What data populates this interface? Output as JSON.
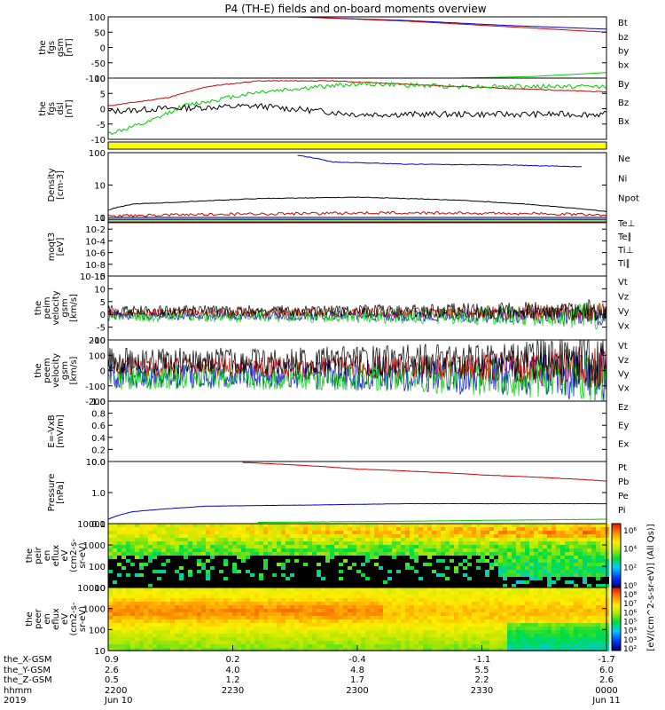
{
  "title": "P4 (TH-E) fields and on-board moments overview",
  "colors": {
    "black": "#000000",
    "red": "#cc0000",
    "green": "#00cc00",
    "blue": "#0000cc",
    "yellow": "#ffff00",
    "orange": "#ff9900"
  },
  "chart_data": [
    {
      "type": "line",
      "ylabel": "the fgs gsm [nT]",
      "yticks": [
        "100",
        "50",
        "0",
        "-50",
        "-100"
      ],
      "ylim": [
        -100,
        100
      ],
      "legend": [
        {
          "name": "Bt",
          "color": "black"
        },
        {
          "name": "bz",
          "color": "red"
        },
        {
          "name": "by",
          "color": "green"
        },
        {
          "name": "bx",
          "color": "blue"
        }
      ],
      "series": [
        {
          "name": "Bt",
          "x": [
            0.38,
            0.6,
            0.8,
            1.0
          ],
          "y": [
            100,
            88,
            72,
            60
          ]
        },
        {
          "name": "bz",
          "x": [
            0.38,
            0.6,
            0.8,
            1.0
          ],
          "y": [
            100,
            86,
            68,
            50
          ]
        },
        {
          "name": "by",
          "x": [
            0.7,
            0.85,
            1.0
          ],
          "y": [
            -100,
            -95,
            -82
          ]
        }
      ]
    },
    {
      "type": "line",
      "ylabel": "the fgs dsl [nT]",
      "yticks": [
        "10",
        "5",
        "0",
        "-5",
        "-10"
      ],
      "ylim": [
        -12,
        10
      ],
      "legend": [
        {
          "name": "By",
          "color": "green"
        },
        {
          "name": "Bz",
          "color": "red"
        },
        {
          "name": "Bx",
          "color": "black"
        }
      ],
      "series": [
        {
          "name": "Bz",
          "x": [
            0,
            0.12,
            0.2,
            0.3,
            0.45,
            0.7,
            1.0
          ],
          "y": [
            0,
            3,
            7,
            9,
            9,
            7,
            5
          ]
        },
        {
          "name": "By",
          "x": [
            0,
            0.08,
            0.15,
            0.3,
            0.5,
            0.7,
            1.0
          ],
          "y": [
            -10,
            -6,
            0,
            5,
            8,
            7,
            7
          ]
        },
        {
          "name": "Bx",
          "x": [
            0,
            0.1,
            0.3,
            0.5,
            0.7,
            1.0
          ],
          "y": [
            -2,
            -1,
            0,
            -3,
            -3,
            -3
          ]
        }
      ]
    },
    {
      "type": "bar",
      "ylabel": "",
      "legend": []
    },
    {
      "type": "line",
      "ylabel": "Density [cm-3]",
      "yticks": [
        "100",
        "10",
        "1"
      ],
      "ylim": [
        0.8,
        200
      ],
      "scale": "log",
      "legend": [
        {
          "name": "Ne",
          "color": "red"
        },
        {
          "name": "Ni",
          "color": "black"
        },
        {
          "name": "Npot",
          "color": "blue"
        }
      ],
      "series": [
        {
          "name": "Ni",
          "x": [
            0,
            0.05,
            0.15,
            0.3,
            0.5,
            0.7,
            0.9,
            1.0
          ],
          "y": [
            1.5,
            2.5,
            3,
            4,
            4.5,
            3.5,
            2,
            1.3
          ]
        },
        {
          "name": "Npot",
          "x": [
            0.38,
            0.45,
            0.6,
            0.8,
            0.95
          ],
          "y": [
            160,
            90,
            75,
            70,
            60
          ]
        },
        {
          "name": "Ne",
          "x": [
            0,
            0.3,
            0.6,
            0.9,
            1.0
          ],
          "y": [
            0.9,
            1.1,
            1.2,
            1.1,
            1.0
          ]
        }
      ]
    },
    {
      "type": "line",
      "ylabel": "moqt3 [eV]",
      "yticks": [
        "10",
        "10-2",
        "10-4",
        "10-6",
        "10-8",
        "10-10"
      ],
      "legend": [
        {
          "name": "Te⊥",
          "color": "red"
        },
        {
          "name": "Te∥",
          "color": "black"
        },
        {
          "name": "Ti⊥",
          "color": "blue"
        },
        {
          "name": "Ti∥",
          "color": "green"
        }
      ]
    },
    {
      "type": "line",
      "ylabel": "the peim velocity gsm [km/s]",
      "yticks": [
        "15",
        "10",
        "5",
        "0",
        "-5",
        "-10"
      ],
      "ylim": [
        -10,
        15
      ],
      "legend": [
        {
          "name": "Vt",
          "color": "black"
        },
        {
          "name": "Vz",
          "color": "red"
        },
        {
          "name": "Vy",
          "color": "green"
        },
        {
          "name": "Vx",
          "color": "blue"
        }
      ]
    },
    {
      "type": "line",
      "ylabel": "the peem velocity gsm [km/s]",
      "yticks": [
        "200",
        "100",
        "0",
        "-100",
        "-200"
      ],
      "ylim": [
        -200,
        200
      ],
      "legend": [
        {
          "name": "Vt",
          "color": "black"
        },
        {
          "name": "Vz",
          "color": "red"
        },
        {
          "name": "Vy",
          "color": "green"
        },
        {
          "name": "Vx",
          "color": "blue"
        }
      ]
    },
    {
      "type": "line",
      "ylabel": "E=-VxB [mV/m]",
      "yticks": [
        "1.0",
        "0.8",
        "0.6",
        "0.4",
        "0.2",
        "0.0"
      ],
      "ylim": [
        0,
        1
      ],
      "legend": [
        {
          "name": "Ez",
          "color": "red"
        },
        {
          "name": "Ey",
          "color": "green"
        },
        {
          "name": "Ex",
          "color": "blue"
        }
      ]
    },
    {
      "type": "line",
      "ylabel": "Pressure [nPa]",
      "yticks": [
        "10.0",
        "1.0",
        "0.1"
      ],
      "ylim": [
        0.04,
        12
      ],
      "scale": "log",
      "legend": [
        {
          "name": "Pt",
          "color": "black"
        },
        {
          "name": "Pb",
          "color": "red"
        },
        {
          "name": "Pe",
          "color": "green"
        },
        {
          "name": "Pi",
          "color": "blue"
        }
      ],
      "series": [
        {
          "name": "Pt",
          "x": [
            0.27,
            0.5,
            0.75,
            1.0
          ],
          "y": [
            11,
            6,
            3.5,
            2
          ]
        },
        {
          "name": "Pi",
          "x": [
            0,
            0.05,
            0.2,
            0.4,
            0.6,
            1.0
          ],
          "y": [
            0.06,
            0.12,
            0.2,
            0.22,
            0.25,
            0.25
          ]
        },
        {
          "name": "Pe",
          "x": [
            0.3,
            0.6,
            1.0
          ],
          "y": [
            0.045,
            0.05,
            0.06
          ]
        }
      ]
    },
    {
      "type": "heatmap",
      "ylabel": "the peir en eflux eV",
      "yticks": [
        "10000",
        "1000",
        "100",
        "10"
      ]
    },
    {
      "type": "heatmap",
      "ylabel": "the peer en eflux eV",
      "yticks": [
        "10000",
        "1000",
        "100",
        "10"
      ]
    }
  ],
  "panel_labels": [
    [
      "the",
      "fgs",
      "gsm",
      "[nT]"
    ],
    [
      "the",
      "fgs",
      "dsl",
      "[nT]"
    ],
    [],
    [
      "Density",
      "[cm-3]"
    ],
    [
      "moqt3",
      "[eV]"
    ],
    [
      "the",
      "peim",
      "velocity",
      "gsm",
      "[km/s]"
    ],
    [
      "the",
      "peem",
      "velocity",
      "gsm",
      "[km/s]"
    ],
    [
      "E=-VxB",
      "[mV/m]"
    ],
    [
      "Pressure",
      "[nPa]"
    ],
    [
      "the",
      "peir",
      "en",
      "eflux",
      "eV",
      "(cm2-s-",
      "sr-eV)"
    ],
    [
      "the",
      "peer",
      "en",
      "eflux",
      "eV",
      "(cm2-s-",
      "sr-eV)"
    ]
  ],
  "colorbar_label": "[eV/(cm^2-s-sr-eV)] (All Qs)]",
  "colorbar_ticks_1": [
    "10⁶",
    "10⁴",
    "10²",
    "10⁰"
  ],
  "colorbar_ticks_2": [
    "10⁸",
    "10⁷",
    "10⁶",
    "10⁵",
    "10⁴",
    "10³",
    "10²"
  ],
  "xaxis": {
    "row_labels": [
      "the_X-GSM",
      "the_Y-GSM",
      "the_Z-GSM",
      "hhmm",
      "2019"
    ],
    "ticks": [
      [
        "0.9",
        "2.6",
        "0.5",
        "2200",
        "Jun 10"
      ],
      [
        "0.2",
        "4.0",
        "1.2",
        "2230",
        ""
      ],
      [
        "-0.4",
        "4.8",
        "1.7",
        "2300",
        ""
      ],
      [
        "-1.1",
        "5.5",
        "2.2",
        "2330",
        ""
      ],
      [
        "-1.7",
        "6.0",
        "2.6",
        "0000",
        "Jun 11"
      ]
    ]
  }
}
